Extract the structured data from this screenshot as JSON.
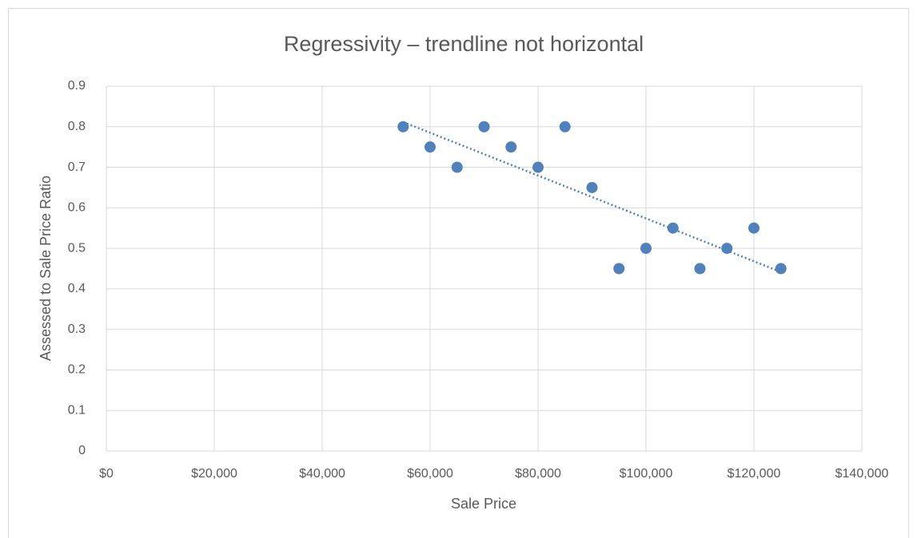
{
  "chart_data": {
    "type": "scatter",
    "title": "Regressivity – trendline not horizontal",
    "x_label": "Sale Price",
    "y_label": "Assessed to Sale Price Ratio",
    "series": [
      {
        "name": "Assessed to Sale Price Ratio",
        "color": "#4f81bd",
        "x": [
          55000,
          60000,
          65000,
          70000,
          75000,
          80000,
          85000,
          90000,
          95000,
          100000,
          105000,
          110000,
          115000,
          120000,
          125000
        ],
        "values": [
          0.8,
          0.75,
          0.7,
          0.8,
          0.75,
          0.7,
          0.8,
          0.65,
          0.45,
          0.5,
          0.55,
          0.45,
          0.5,
          0.55,
          0.45
        ]
      }
    ],
    "trendline": "linear",
    "xlim": [
      0,
      140000
    ],
    "xticks": [
      {
        "value": 0,
        "label": "$0"
      },
      {
        "value": 20000,
        "label": "$20,000"
      },
      {
        "value": 40000,
        "label": "$40,000"
      },
      {
        "value": 60000,
        "label": "$60,000"
      },
      {
        "value": 80000,
        "label": "$80,000"
      },
      {
        "value": 100000,
        "label": "$100,000"
      },
      {
        "value": 120000,
        "label": "$120,000"
      },
      {
        "value": 140000,
        "label": "$140,000"
      }
    ],
    "ylim": [
      0,
      0.9
    ],
    "yticks": [
      0,
      0.1,
      0.2,
      0.3,
      0.4,
      0.5,
      0.6,
      0.7,
      0.8,
      0.9
    ],
    "grid": true
  }
}
